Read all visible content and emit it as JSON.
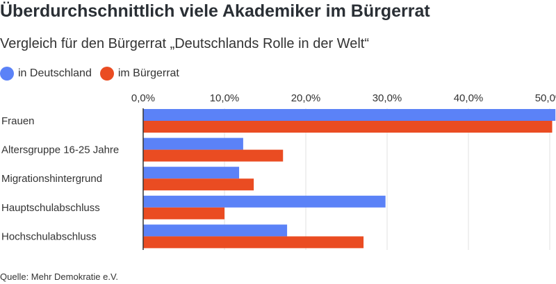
{
  "title": "Überdurchschnittlich viele Akademiker im Bürgerrat",
  "subtitle": "Vergleich für den Bürgerrat „Deutschlands Rolle in der Welt“",
  "source": "Quelle: Mehr Demokratie e.V.",
  "colors": {
    "deutschland": "#5b82f7",
    "buergerrat": "#ea4c22",
    "grid": "#e2e2e2",
    "axis": "#333333",
    "text": "#333333"
  },
  "chart_data": {
    "type": "bar",
    "orientation": "horizontal",
    "categories": [
      "Frauen",
      "Altersgruppe 16-25 Jahre",
      "Migrationshintergrund",
      "Hauptschulabschluss",
      "Hochschulabschluss"
    ],
    "series": [
      {
        "name": "in Deutschland",
        "values": [
          50.7,
          12.3,
          11.8,
          29.8,
          17.7
        ]
      },
      {
        "name": "im Bürgerrat",
        "values": [
          50.3,
          17.2,
          13.6,
          10.0,
          27.1
        ]
      }
    ],
    "xticks": [
      "0,0%",
      "10,0%",
      "20,0%",
      "30,0%",
      "40,0%",
      "50,0%"
    ],
    "xlim": [
      0,
      50
    ],
    "grid": true,
    "legend_position": "top-left"
  }
}
